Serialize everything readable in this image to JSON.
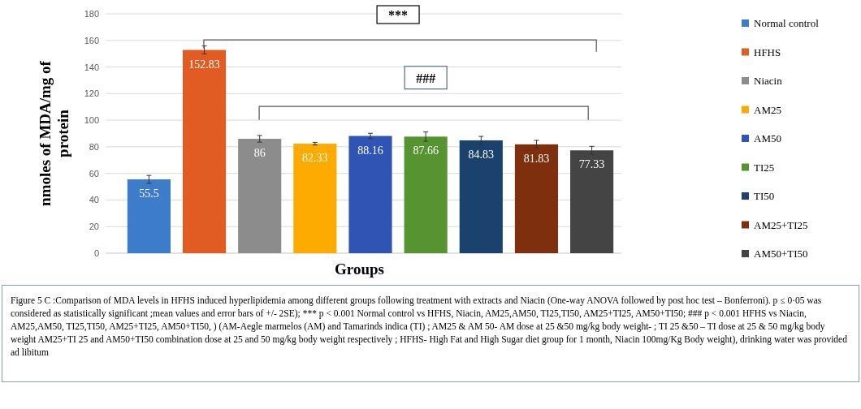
{
  "chart_data": {
    "type": "bar",
    "ylabel": "nmoles of MDA/mg of protein",
    "xlabel": "Groups",
    "categories": [
      null,
      null,
      null,
      null,
      null,
      null,
      null,
      null,
      null
    ],
    "series": [
      {
        "name": "Normal control",
        "color": "#3d7cc9",
        "values": [
          55.5,
          null,
          null,
          null,
          null,
          null,
          null,
          null,
          null
        ],
        "errors": [
          3,
          null,
          null,
          null,
          null,
          null,
          null,
          null,
          null
        ]
      },
      {
        "name": "HFHS",
        "color": "#e05c22",
        "values": [
          null,
          152.83,
          null,
          null,
          null,
          null,
          null,
          null,
          null
        ],
        "errors": [
          null,
          3,
          null,
          null,
          null,
          null,
          null,
          null,
          null
        ]
      },
      {
        "name": "Niacin",
        "color": "#8c8c8c",
        "values": [
          null,
          null,
          86,
          null,
          null,
          null,
          null,
          null,
          null
        ],
        "errors": [
          null,
          null,
          2.5,
          null,
          null,
          null,
          null,
          null,
          null
        ]
      },
      {
        "name": "AM25",
        "color": "#fdab00",
        "values": [
          null,
          null,
          null,
          82.33,
          null,
          null,
          null,
          null,
          null
        ],
        "errors": [
          null,
          null,
          null,
          1,
          null,
          null,
          null,
          null,
          null
        ]
      },
      {
        "name": "AM50",
        "color": "#2f54b3",
        "values": [
          null,
          null,
          null,
          null,
          88.16,
          null,
          null,
          null,
          null
        ],
        "errors": [
          null,
          null,
          null,
          null,
          2,
          null,
          null,
          null,
          null
        ]
      },
      {
        "name": "TI25",
        "color": "#559431",
        "values": [
          null,
          null,
          null,
          null,
          null,
          87.66,
          null,
          null,
          null
        ],
        "errors": [
          null,
          null,
          null,
          null,
          null,
          3.5,
          null,
          null,
          null
        ]
      },
      {
        "name": "TI50",
        "color": "#1b416d",
        "values": [
          null,
          null,
          null,
          null,
          null,
          null,
          84.83,
          null,
          null
        ],
        "errors": [
          null,
          null,
          null,
          null,
          null,
          null,
          3,
          null,
          null
        ]
      },
      {
        "name": "AM25+TI25",
        "color": "#7e300e",
        "values": [
          null,
          null,
          null,
          null,
          null,
          null,
          null,
          81.83,
          null
        ],
        "errors": [
          null,
          null,
          null,
          null,
          null,
          null,
          null,
          3,
          null
        ]
      },
      {
        "name": "AM50+TI50",
        "color": "#444444",
        "values": [
          null,
          null,
          null,
          null,
          null,
          null,
          null,
          null,
          77.33
        ],
        "errors": [
          null,
          null,
          null,
          null,
          null,
          null,
          null,
          null,
          3
        ]
      }
    ],
    "ylim": [
      0,
      180
    ],
    "yticks": [
      0,
      20,
      40,
      60,
      80,
      100,
      120,
      140,
      160,
      180
    ],
    "grid": "y",
    "legend": "right",
    "tick_labels": "y",
    "data_labels": true,
    "annotations": [
      "***",
      "###",
      "Figure 5 C :Comparison of MDA levels in HFHS induced hyperlipidemia among different groups following treatment with extracts and Niacin (One-way ANOVA followed by post hoc test – Bonferroni). p ≤ 0·05 was considered as statistically significant ;mean values and error bars of +/- 2SE); *** p < 0.001 Normal control vs HFHS, Niacin, AM25,AM50, TI25,TI50, AM25+TI25, AM50+TI50; ### p < 0.001 HFHS vs Niacin, AM25,AM50, TI25,TI50, AM25+TI25, AM50+TI50, ) (AM-Aegle marmelos (AM) and Tamarinds indica (TI) ; AM25 & AM 50- AM dose at 25 &50 mg/kg body weight- ; TI 25 &50 – TI dose at 25 & 50 mg/kg body weight AM25+TI 25 and AM50+TI50 combination dose at 25 and 50 mg/kg body weight respectively ; HFHS- High Fat and High Sugar diet group for 1 month, Niacin 100mg/Kg Body weight), drinking water was provided ad libitum"
    ]
  }
}
